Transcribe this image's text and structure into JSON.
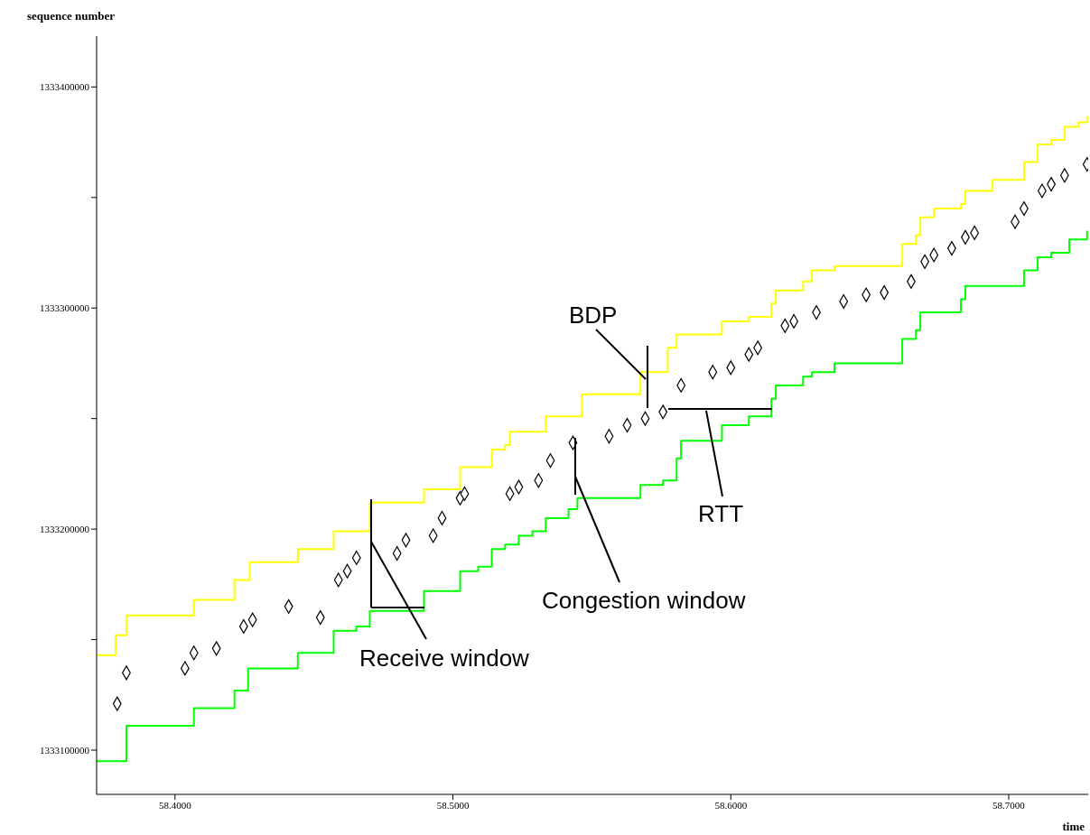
{
  "chart_data": {
    "type": "step",
    "xlabel": "time",
    "ylabel": "sequence number",
    "xlim": [
      58.3718,
      58.7286
    ],
    "ylim": [
      1333080000,
      1333423000
    ],
    "xticks": [
      {
        "value": 58.4,
        "label": "58.4000"
      },
      {
        "value": 58.5,
        "label": "58.5000"
      },
      {
        "value": 58.6,
        "label": "58.6000"
      },
      {
        "value": 58.7,
        "label": "58.7000"
      }
    ],
    "yticks": [
      1333100000,
      {
        "value": 1333150000,
        "label": null
      },
      1333200000,
      {
        "value": 1333250000,
        "label": null
      },
      1333300000,
      {
        "value": 1333350000,
        "label": null
      },
      1333400000
    ],
    "grid": false,
    "series": [
      {
        "color": "#ffff00",
        "x": [
          58.3718,
          58.376,
          58.3786,
          58.3825,
          58.4036,
          58.4068,
          58.4166,
          58.4214,
          58.4269,
          58.4409,
          58.4442,
          58.4523,
          58.4571,
          58.4653,
          58.4701,
          58.4847,
          58.4896,
          58.4994,
          58.5026,
          58.5091,
          58.514,
          58.5188,
          58.5205,
          58.5286,
          58.5334,
          58.5416,
          58.5464,
          58.5643,
          58.5675,
          58.5756,
          58.5773,
          58.5805,
          58.5935,
          58.5968,
          58.6065,
          58.6146,
          58.6162,
          58.626,
          58.6292,
          58.6373,
          58.6568,
          58.6617,
          58.6666,
          58.6682,
          58.6731,
          58.6828,
          58.6844,
          58.6942,
          58.7023,
          58.7055,
          58.7104,
          58.7153,
          58.7201,
          58.725,
          58.7282
        ],
        "values": [
          1333143000,
          1333143000,
          1333152000,
          1333161000,
          1333161000,
          1333168000,
          1333168000,
          1333177000,
          1333185000,
          1333185000,
          1333191000,
          1333191000,
          1333199000,
          1333199000,
          1333212000,
          1333212000,
          1333218000,
          1333218000,
          1333228000,
          1333228000,
          1333236000,
          1333238000,
          1333244000,
          1333244000,
          1333251000,
          1333251000,
          1333261000,
          1333261000,
          1333271000,
          1333271000,
          1333282000,
          1333288000,
          1333288000,
          1333294000,
          1333296000,
          1333302000,
          1333308000,
          1333312000,
          1333317000,
          1333319000,
          1333319000,
          1333329000,
          1333333000,
          1333341000,
          1333345000,
          1333347000,
          1333353000,
          1333358000,
          1333358000,
          1333366000,
          1333374000,
          1333376000,
          1333382000,
          1333384000,
          1333387000
        ]
      },
      {
        "color": "#00ff00",
        "x": [
          58.3718,
          58.3786,
          58.3825,
          58.4036,
          58.4068,
          58.4166,
          58.4214,
          58.4263,
          58.4409,
          58.4442,
          58.4523,
          58.4571,
          58.4653,
          58.4701,
          58.4847,
          58.4896,
          58.4994,
          58.5026,
          58.5091,
          58.514,
          58.5188,
          58.5237,
          58.5286,
          58.5334,
          58.5416,
          58.5448,
          58.5643,
          58.5675,
          58.5756,
          58.5805,
          58.5821,
          58.5935,
          58.5968,
          58.6065,
          58.6146,
          58.6162,
          58.626,
          58.6292,
          58.6373,
          58.6568,
          58.6617,
          58.6666,
          58.6682,
          58.6828,
          58.6844,
          58.7023,
          58.7055,
          58.7104,
          58.7153,
          58.7218,
          58.7282
        ],
        "values": [
          1333095000,
          1333095000,
          1333111000,
          1333111000,
          1333119000,
          1333119000,
          1333127000,
          1333137000,
          1333137000,
          1333144000,
          1333144000,
          1333154000,
          1333156000,
          1333163000,
          1333163000,
          1333172000,
          1333172000,
          1333181000,
          1333183000,
          1333191000,
          1333193000,
          1333197000,
          1333199000,
          1333205000,
          1333209000,
          1333214000,
          1333214000,
          1333220000,
          1333222000,
          1333232000,
          1333240000,
          1333240000,
          1333247000,
          1333251000,
          1333259000,
          1333265000,
          1333269000,
          1333271000,
          1333275000,
          1333275000,
          1333286000,
          1333290000,
          1333298000,
          1333304000,
          1333310000,
          1333310000,
          1333317000,
          1333323000,
          1333325000,
          1333331000,
          1333335000
        ]
      },
      {
        "type": "scatter",
        "color": "#000000",
        "marker": "diamond",
        "x": [
          58.3792,
          58.3825,
          58.4036,
          58.4068,
          58.4149,
          58.4247,
          58.4279,
          58.4409,
          58.4523,
          58.4588,
          58.462,
          58.4653,
          58.4799,
          58.4831,
          58.4929,
          58.4961,
          58.5026,
          58.5042,
          58.5205,
          58.5237,
          58.5308,
          58.5351,
          58.5432,
          58.5562,
          58.5627,
          58.5692,
          58.5756,
          58.5821,
          58.5935,
          58.6,
          58.6065,
          58.6097,
          58.6195,
          58.6227,
          58.6308,
          58.6406,
          58.6487,
          58.6552,
          58.6649,
          58.6698,
          58.6731,
          58.6795,
          58.6844,
          58.6877,
          58.7023,
          58.7055,
          58.712,
          58.7153,
          58.7201,
          58.7282
        ],
        "values": [
          1333121000,
          1333135000,
          1333137000,
          1333144000,
          1333146000,
          1333156000,
          1333159000,
          1333165000,
          1333160000,
          1333177000,
          1333181000,
          1333187000,
          1333189000,
          1333195000,
          1333197000,
          1333205000,
          1333214000,
          1333216000,
          1333216000,
          1333219000,
          1333222000,
          1333231000,
          1333239000,
          1333242000,
          1333247000,
          1333250000,
          1333253000,
          1333265000,
          1333271000,
          1333273000,
          1333279000,
          1333282000,
          1333292000,
          1333294000,
          1333298000,
          1333303000,
          1333306000,
          1333307000,
          1333312000,
          1333321000,
          1333324000,
          1333327000,
          1333332000,
          1333334000,
          1333339000,
          1333345000,
          1333353000,
          1333356000,
          1333360000,
          1333365000
        ]
      }
    ],
    "annotations": [
      "Receive window",
      "Congestion window",
      "BDP",
      "RTT"
    ]
  }
}
